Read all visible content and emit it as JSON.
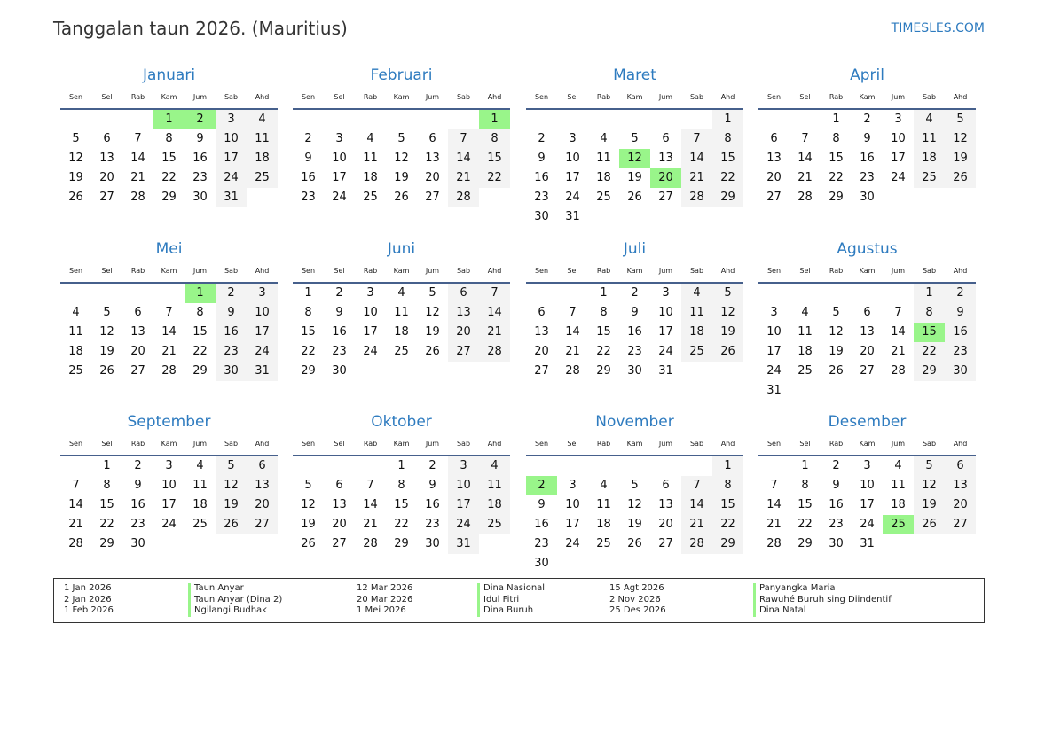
{
  "title": "Tanggalan taun 2026. (Mauritius)",
  "brand": "TIMESLES.COM",
  "weekdays": [
    "Sen",
    "Sel",
    "Rab",
    "Kam",
    "Jum",
    "Sab",
    "Ahd"
  ],
  "colors": {
    "accent": "#2e7bbf",
    "holiday": "#99f58a",
    "weekend": "#f3f3f3",
    "rule": "#46608c"
  },
  "months": [
    {
      "name": "Januari",
      "offset": 3,
      "days": 31,
      "holidays": [
        1,
        2
      ]
    },
    {
      "name": "Februari",
      "offset": 6,
      "days": 28,
      "holidays": [
        1
      ]
    },
    {
      "name": "Maret",
      "offset": 6,
      "days": 31,
      "holidays": [
        12,
        20
      ]
    },
    {
      "name": "April",
      "offset": 2,
      "days": 30,
      "holidays": []
    },
    {
      "name": "Mei",
      "offset": 4,
      "days": 31,
      "holidays": [
        1
      ]
    },
    {
      "name": "Juni",
      "offset": 0,
      "days": 30,
      "holidays": []
    },
    {
      "name": "Juli",
      "offset": 2,
      "days": 31,
      "holidays": []
    },
    {
      "name": "Agustus",
      "offset": 5,
      "days": 31,
      "holidays": [
        15
      ]
    },
    {
      "name": "September",
      "offset": 1,
      "days": 30,
      "holidays": []
    },
    {
      "name": "Oktober",
      "offset": 3,
      "days": 31,
      "holidays": []
    },
    {
      "name": "November",
      "offset": 6,
      "days": 30,
      "holidays": [
        2
      ]
    },
    {
      "name": "Desember",
      "offset": 1,
      "days": 31,
      "holidays": [
        25
      ]
    }
  ],
  "legend": [
    {
      "date": "1 Jan 2026",
      "name": "Taun Anyar"
    },
    {
      "date": "2 Jan 2026",
      "name": "Taun Anyar (Dina 2)"
    },
    {
      "date": "1 Feb 2026",
      "name": "Ngilangi Budhak"
    },
    {
      "date": "12 Mar 2026",
      "name": "Dina Nasional"
    },
    {
      "date": "20 Mar 2026",
      "name": "Idul Fitri"
    },
    {
      "date": "1 Mei 2026",
      "name": "Dina Buruh"
    },
    {
      "date": "15 Agt 2026",
      "name": "Panyangka Maria"
    },
    {
      "date": "2 Nov 2026",
      "name": "Rawuhé Buruh sing Diindentif"
    },
    {
      "date": "25 Des 2026",
      "name": "Dina Natal"
    }
  ]
}
